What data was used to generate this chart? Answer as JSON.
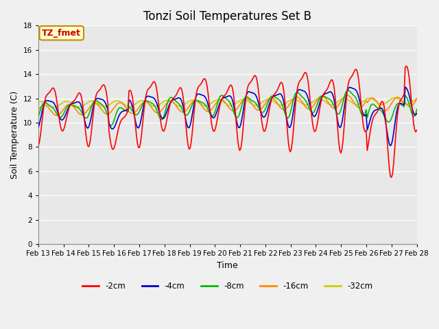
{
  "title": "Tonzi Soil Temperatures Set B",
  "xlabel": "Time",
  "ylabel": "Soil Temperature (C)",
  "ylim": [
    0,
    18
  ],
  "yticks": [
    0,
    2,
    4,
    6,
    8,
    10,
    12,
    14,
    16,
    18
  ],
  "date_labels": [
    "Feb 13",
    "Feb 14",
    "Feb 15",
    "Feb 16",
    "Feb 17",
    "Feb 18",
    "Feb 19",
    "Feb 20",
    "Feb 21",
    "Feb 22",
    "Feb 23",
    "Feb 24",
    "Feb 25",
    "Feb 26",
    "Feb 27",
    "Feb 28"
  ],
  "series_2cm": {
    "color": "#ff0000",
    "linewidth": 1.2
  },
  "series_4cm": {
    "color": "#0000cc",
    "linewidth": 1.2
  },
  "series_8cm": {
    "color": "#00bb00",
    "linewidth": 1.2
  },
  "series_16cm": {
    "color": "#ff8800",
    "linewidth": 1.2
  },
  "series_32cm": {
    "color": "#cccc00",
    "linewidth": 1.2
  },
  "annotation_text": "TZ_fmet",
  "annotation_color": "#cc0000",
  "annotation_bg": "#ffffcc",
  "annotation_border": "#cc8800",
  "fig_facecolor": "#f0f0f0",
  "plot_bg": "#e8e8e8",
  "grid_color": "#ffffff",
  "title_fontsize": 12,
  "axis_fontsize": 9,
  "tick_fontsize": 7.5
}
